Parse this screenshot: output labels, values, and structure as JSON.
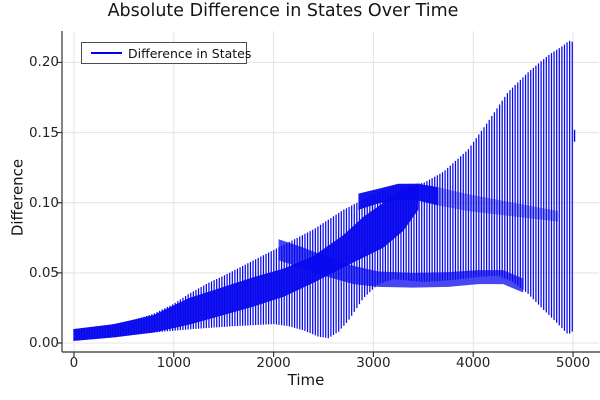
{
  "title": "Absolute Difference in States Over Time",
  "legend": {
    "label": "Difference in States",
    "line_color": "#0000ee"
  },
  "chart_data": {
    "type": "line",
    "title": "Absolute Difference in States Over Time",
    "xlabel": "Time",
    "ylabel": "Difference",
    "series_name": "Difference in States",
    "series_color": "#0808ee",
    "grid": true,
    "grid_color": "#e4e4e4",
    "spine_color": "#333333",
    "legend_position": "top-left",
    "xlim": [
      -120,
      5260
    ],
    "ylim": [
      -0.0064,
      0.2224
    ],
    "x_ticks": [
      {
        "value": 0,
        "label": "0"
      },
      {
        "value": 1000,
        "label": "1000"
      },
      {
        "value": 2000,
        "label": "2000"
      },
      {
        "value": 3000,
        "label": "3000"
      },
      {
        "value": 4000,
        "label": "4000"
      },
      {
        "value": 5000,
        "label": "5000"
      }
    ],
    "y_ticks": [
      {
        "value": 0.0,
        "label": "0.00"
      },
      {
        "value": 0.05,
        "label": "0.05"
      },
      {
        "value": 0.1,
        "label": "0.10"
      },
      {
        "value": 0.15,
        "label": "0.15"
      },
      {
        "value": 0.2,
        "label": "0.20"
      }
    ],
    "oscillation_step": 26,
    "stroke_width": 1.25,
    "upper_envelope": [
      [
        0,
        0.01
      ],
      [
        200,
        0.0115
      ],
      [
        400,
        0.0135
      ],
      [
        600,
        0.0165
      ],
      [
        800,
        0.021
      ],
      [
        1000,
        0.028
      ],
      [
        1150,
        0.035
      ],
      [
        1350,
        0.043
      ],
      [
        1500,
        0.048
      ],
      [
        1800,
        0.059
      ],
      [
        2100,
        0.07
      ],
      [
        2400,
        0.081
      ],
      [
        2700,
        0.095
      ],
      [
        3000,
        0.106
      ],
      [
        3250,
        0.113
      ],
      [
        3500,
        0.114
      ],
      [
        3700,
        0.122
      ],
      [
        3950,
        0.138
      ],
      [
        4150,
        0.158
      ],
      [
        4350,
        0.179
      ],
      [
        4550,
        0.193
      ],
      [
        4750,
        0.205
      ],
      [
        4900,
        0.212
      ],
      [
        4960,
        0.2155
      ],
      [
        5000,
        0.2145
      ]
    ],
    "lower_envelope": [
      [
        0,
        0.0015
      ],
      [
        400,
        0.004
      ],
      [
        800,
        0.0075
      ],
      [
        1200,
        0.01
      ],
      [
        1600,
        0.012
      ],
      [
        2000,
        0.0135
      ],
      [
        2150,
        0.012
      ],
      [
        2300,
        0.009
      ],
      [
        2450,
        0.0045
      ],
      [
        2550,
        0.0035
      ],
      [
        2650,
        0.008
      ],
      [
        2750,
        0.016
      ],
      [
        2900,
        0.032
      ],
      [
        3050,
        0.042
      ],
      [
        3200,
        0.0455
      ],
      [
        3500,
        0.0435
      ],
      [
        3800,
        0.045
      ],
      [
        4050,
        0.047
      ],
      [
        4250,
        0.048
      ],
      [
        4400,
        0.0435
      ],
      [
        4550,
        0.035
      ],
      [
        4700,
        0.024
      ],
      [
        4850,
        0.0135
      ],
      [
        4950,
        0.006
      ],
      [
        5000,
        0.0085
      ]
    ],
    "dense_bands": [
      {
        "opacity": 0.95,
        "points": [
          [
            0,
            0.0015,
            0.01
          ],
          [
            400,
            0.004,
            0.0135
          ],
          [
            800,
            0.0075,
            0.02
          ],
          [
            1150,
            0.013,
            0.032
          ],
          [
            1500,
            0.02,
            0.04
          ],
          [
            1800,
            0.026,
            0.047
          ],
          [
            2100,
            0.033,
            0.053
          ],
          [
            2400,
            0.043,
            0.062
          ],
          [
            2700,
            0.054,
            0.077
          ],
          [
            2900,
            0.061,
            0.09
          ],
          [
            3100,
            0.068,
            0.1
          ],
          [
            3300,
            0.08,
            0.11
          ],
          [
            3450,
            0.095,
            0.113
          ]
        ]
      },
      {
        "opacity": 0.75,
        "points": [
          [
            2050,
            0.059,
            0.074
          ],
          [
            2300,
            0.053,
            0.068
          ],
          [
            2550,
            0.047,
            0.061
          ],
          [
            2800,
            0.042,
            0.055
          ],
          [
            3050,
            0.04,
            0.051
          ],
          [
            3400,
            0.0395,
            0.05
          ],
          [
            3750,
            0.04,
            0.0505
          ],
          [
            4050,
            0.042,
            0.052
          ],
          [
            4300,
            0.042,
            0.052
          ],
          [
            4500,
            0.036,
            0.046
          ]
        ]
      },
      {
        "opacity": 0.95,
        "points": [
          [
            2850,
            0.095,
            0.1065
          ],
          [
            3050,
            0.0995,
            0.11
          ],
          [
            3250,
            0.102,
            0.1135
          ],
          [
            3450,
            0.1015,
            0.1135
          ],
          [
            3650,
            0.098,
            0.111
          ]
        ]
      },
      {
        "opacity": 0.4,
        "points": [
          [
            3650,
            0.098,
            0.111
          ],
          [
            3950,
            0.094,
            0.106
          ],
          [
            4250,
            0.0915,
            0.102
          ],
          [
            4550,
            0.089,
            0.098
          ],
          [
            4850,
            0.0865,
            0.094
          ]
        ]
      }
    ],
    "edge_stub": {
      "t": 5015,
      "top": 0.152,
      "bottom": 0.1435
    }
  }
}
